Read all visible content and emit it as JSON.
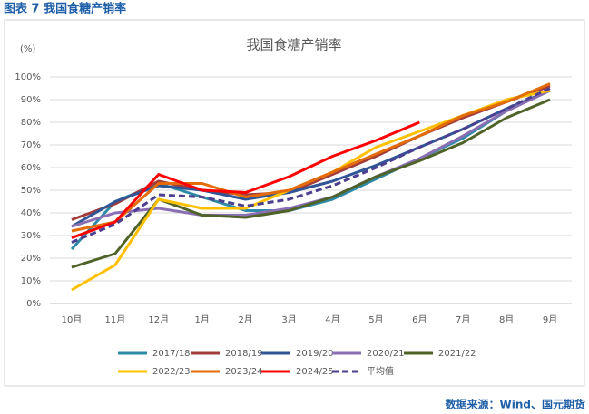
{
  "header": "图表 7  我国食糖产销率",
  "source": "数据来源：Wind、国元期货",
  "chart_data": {
    "type": "line",
    "title": "我国食糖产销率",
    "y_label": "(%)",
    "categories": [
      "10月",
      "11月",
      "12月",
      "1月",
      "2月",
      "3月",
      "4月",
      "5月",
      "6月",
      "7月",
      "8月",
      "9月"
    ],
    "ylim": [
      0,
      100
    ],
    "yticks": [
      {
        "value": 0,
        "label": "0%"
      },
      {
        "value": 10,
        "label": "10%"
      },
      {
        "value": 20,
        "label": "20%"
      },
      {
        "value": 30,
        "label": "30%"
      },
      {
        "value": 40,
        "label": "40%"
      },
      {
        "value": 50,
        "label": "50%"
      },
      {
        "value": 60,
        "label": "60%"
      },
      {
        "value": 70,
        "label": "70%"
      },
      {
        "value": 80,
        "label": "80%"
      },
      {
        "value": 90,
        "label": "90%"
      },
      {
        "value": 100,
        "label": "100%"
      }
    ],
    "grid": true,
    "series": [
      {
        "name": "2017/18",
        "color": "#2e8ba8",
        "values": [
          24,
          45,
          53,
          47,
          41,
          41,
          46,
          55,
          64,
          73,
          85,
          94
        ]
      },
      {
        "name": "2018/19",
        "color": "#a33b3b",
        "values": [
          37,
          44,
          54,
          50,
          48,
          49,
          57,
          65,
          74,
          82,
          89,
          96
        ]
      },
      {
        "name": "2019/20",
        "color": "#2f5597",
        "values": [
          34,
          45,
          52,
          50,
          46,
          49,
          54,
          61,
          69,
          77,
          86,
          94
        ]
      },
      {
        "name": "2020/21",
        "color": "#8a6fb5",
        "values": [
          34,
          40,
          42,
          39,
          39,
          42,
          47,
          56,
          64,
          74,
          85,
          94
        ]
      },
      {
        "name": "2021/22",
        "color": "#4f6228",
        "values": [
          16,
          22,
          46,
          39,
          38,
          41,
          47,
          56,
          63,
          71,
          82,
          90
        ]
      },
      {
        "name": "2022/23",
        "color": "#ffc000",
        "values": [
          6,
          17,
          46,
          42,
          42,
          50,
          58,
          69,
          76,
          83,
          90,
          94
        ]
      },
      {
        "name": "2023/24",
        "color": "#e36c09",
        "values": [
          32,
          36,
          53,
          53,
          47,
          50,
          58,
          66,
          74,
          83,
          89,
          97
        ]
      },
      {
        "name": "2024/25",
        "color": "#ff0000",
        "values": [
          29,
          36,
          57,
          50,
          49,
          56,
          65,
          72,
          80,
          null,
          null,
          null
        ]
      },
      {
        "name": "平均值",
        "color": "#4b3f8f",
        "dashed": true,
        "values": [
          27,
          35,
          48,
          47,
          43,
          46,
          52,
          60,
          69,
          77,
          86,
          95
        ]
      }
    ]
  }
}
